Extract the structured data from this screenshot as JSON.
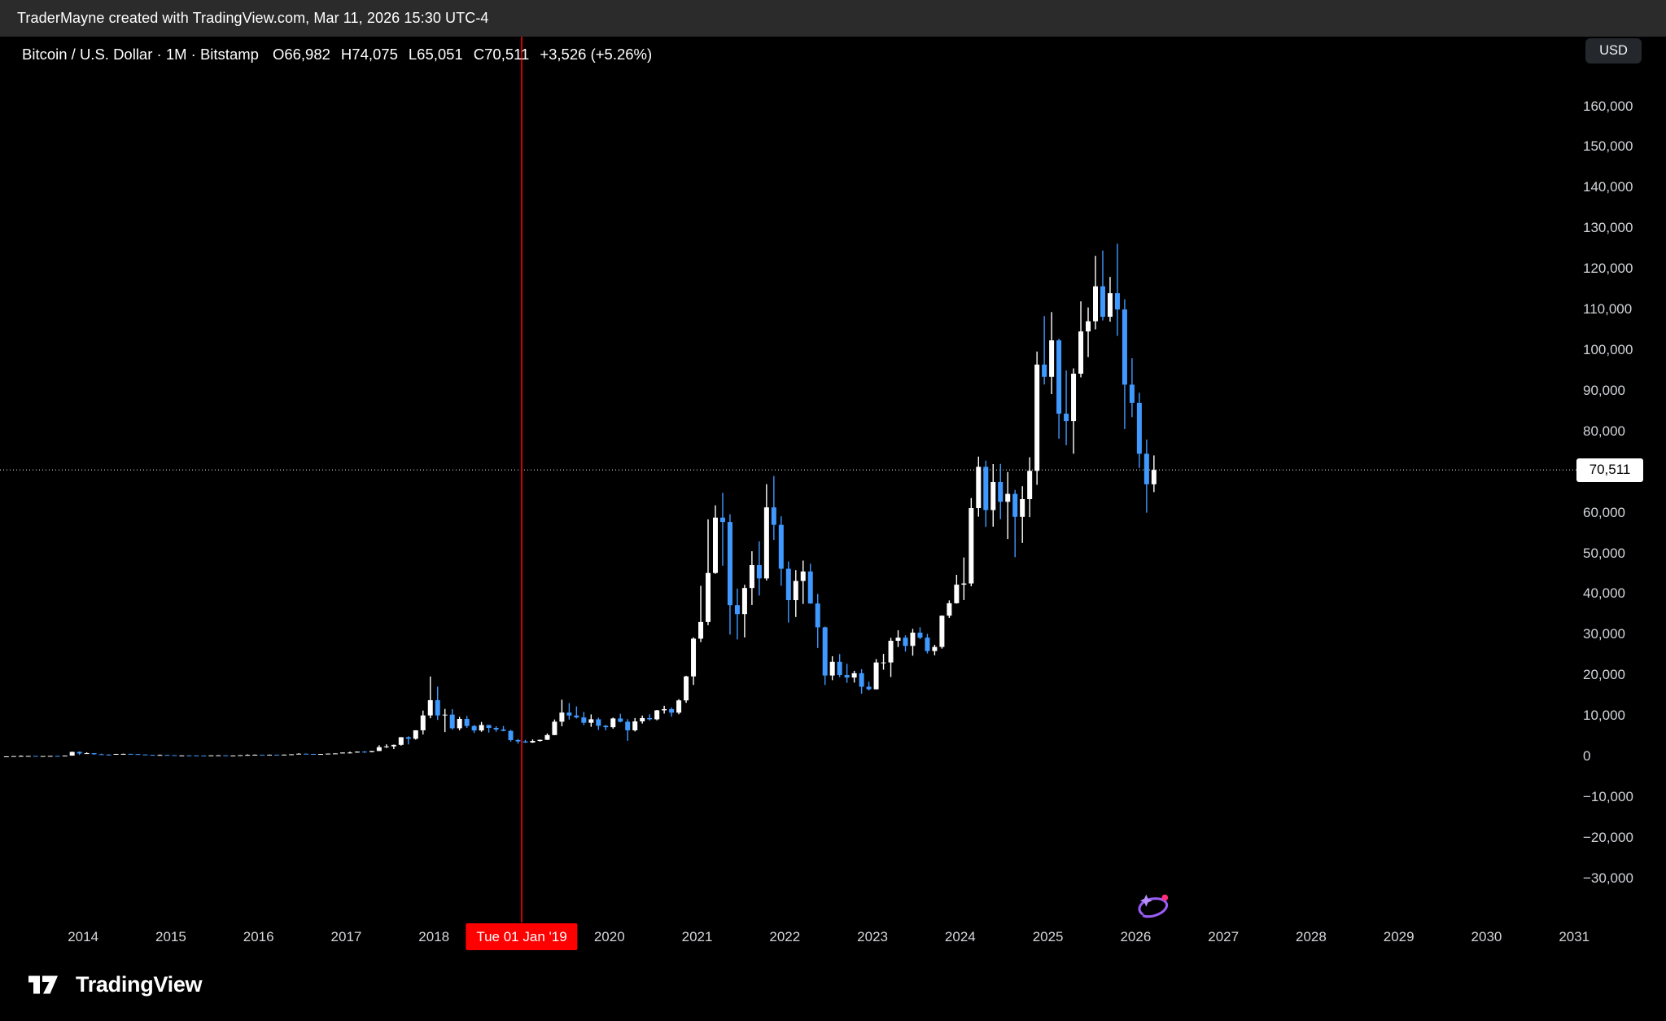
{
  "attribution": {
    "text": "TraderMayne created with TradingView.com, Mar 11, 2026 15:30 UTC-4"
  },
  "header": {
    "title": "Bitcoin / U.S. Dollar · 1M · Bitstamp",
    "open": "O66,982",
    "high": "H74,075",
    "low": "L65,051",
    "close": "C70,511",
    "change": "+3,526 (+5.26%)"
  },
  "price_axis": {
    "currency": "USD",
    "current": {
      "v": 70511,
      "t": "70,511"
    },
    "labels": [
      {
        "v": 160000,
        "t": "160,000"
      },
      {
        "v": 150000,
        "t": "150,000"
      },
      {
        "v": 140000,
        "t": "140,000"
      },
      {
        "v": 130000,
        "t": "130,000"
      },
      {
        "v": 120000,
        "t": "120,000"
      },
      {
        "v": 110000,
        "t": "110,000"
      },
      {
        "v": 100000,
        "t": "100,000"
      },
      {
        "v": 90000,
        "t": "90,000"
      },
      {
        "v": 80000,
        "t": "80,000"
      },
      {
        "v": 60000,
        "t": "60,000"
      },
      {
        "v": 50000,
        "t": "50,000"
      },
      {
        "v": 40000,
        "t": "40,000"
      },
      {
        "v": 30000,
        "t": "30,000"
      },
      {
        "v": 20000,
        "t": "20,000"
      },
      {
        "v": 10000,
        "t": "10,000"
      },
      {
        "v": 0,
        "t": "0"
      },
      {
        "v": -10000,
        "t": "−10,000"
      },
      {
        "v": -20000,
        "t": "−20,000"
      },
      {
        "v": -30000,
        "t": "−30,000"
      }
    ]
  },
  "time_axis": {
    "years": [
      {
        "year": 2014,
        "label": "2014"
      },
      {
        "year": 2015,
        "label": "2015"
      },
      {
        "year": 2016,
        "label": "2016"
      },
      {
        "year": 2017,
        "label": "2017"
      },
      {
        "year": 2018,
        "label": "2018"
      },
      {
        "year": 2020,
        "label": "2020"
      },
      {
        "year": 2021,
        "label": "2021"
      },
      {
        "year": 2022,
        "label": "2022"
      },
      {
        "year": 2023,
        "label": "2023"
      },
      {
        "year": 2024,
        "label": "2024"
      },
      {
        "year": 2025,
        "label": "2025"
      },
      {
        "year": 2026,
        "label": "2026"
      },
      {
        "year": 2027,
        "label": "2027"
      },
      {
        "year": 2028,
        "label": "2028"
      },
      {
        "year": 2029,
        "label": "2029"
      },
      {
        "year": 2030,
        "label": "2030"
      },
      {
        "year": 2031,
        "label": "2031"
      }
    ],
    "marker": {
      "t": "Tue 01 Jan '19",
      "date": "2019-01"
    }
  },
  "footer": {
    "brand": "TradingView"
  },
  "colors": {
    "up": "#ffffff",
    "down": "#4099ff",
    "marker_red": "#fe0000",
    "background": "#000000",
    "axis_text": "#d2d4d9"
  },
  "chart_data": {
    "type": "candlestick",
    "title": "Bitcoin / U.S. Dollar",
    "interval": "1M",
    "exchange": "Bitstamp",
    "ylabel": "USD",
    "ylim": [
      -35000,
      172000
    ],
    "xlim": [
      "2013-02",
      "2031-03"
    ],
    "grid": false,
    "legend": false,
    "current_price": 70511,
    "marker": {
      "date": "2019-01",
      "label": "Tue 01 Jan '19"
    },
    "colors": {
      "up": "#ffffff",
      "down": "#4099ff"
    },
    "candles_format": [
      "month",
      "open",
      "high",
      "low",
      "close"
    ],
    "candles": [
      [
        "2013-02",
        20,
        34,
        17,
        33
      ],
      [
        "2013-03",
        33,
        95,
        33,
        93
      ],
      [
        "2013-04",
        93,
        266,
        50,
        128
      ],
      [
        "2013-05",
        128,
        140,
        79,
        129
      ],
      [
        "2013-06",
        129,
        130,
        88,
        97
      ],
      [
        "2013-07",
        97,
        112,
        65,
        106
      ],
      [
        "2013-08",
        106,
        147,
        92,
        138
      ],
      [
        "2013-09",
        138,
        147,
        109,
        133
      ],
      [
        "2013-10",
        133,
        230,
        109,
        211
      ],
      [
        "2013-11",
        211,
        1163,
        200,
        1130
      ],
      [
        "2013-12",
        1130,
        1240,
        380,
        732
      ],
      [
        "2014-01",
        732,
        1000,
        730,
        806
      ],
      [
        "2014-02",
        806,
        830,
        400,
        550
      ],
      [
        "2014-03",
        550,
        700,
        420,
        454
      ],
      [
        "2014-04",
        454,
        550,
        340,
        446
      ],
      [
        "2014-05",
        446,
        630,
        420,
        627
      ],
      [
        "2014-06",
        627,
        680,
        540,
        640
      ],
      [
        "2014-07",
        640,
        655,
        560,
        582
      ],
      [
        "2014-08",
        582,
        600,
        455,
        478
      ],
      [
        "2014-09",
        478,
        495,
        365,
        387
      ],
      [
        "2014-10",
        387,
        411,
        275,
        338
      ],
      [
        "2014-11",
        338,
        460,
        320,
        378
      ],
      [
        "2014-12",
        378,
        384,
        285,
        320
      ],
      [
        "2015-01",
        320,
        321,
        152,
        217
      ],
      [
        "2015-02",
        217,
        265,
        210,
        254
      ],
      [
        "2015-03",
        254,
        300,
        236,
        244
      ],
      [
        "2015-04",
        244,
        262,
        210,
        236
      ],
      [
        "2015-05",
        236,
        248,
        228,
        230
      ],
      [
        "2015-06",
        230,
        268,
        220,
        263
      ],
      [
        "2015-07",
        263,
        318,
        255,
        284
      ],
      [
        "2015-08",
        284,
        285,
        198,
        230
      ],
      [
        "2015-09",
        230,
        247,
        223,
        236
      ],
      [
        "2015-10",
        236,
        334,
        235,
        314
      ],
      [
        "2015-11",
        314,
        504,
        295,
        377
      ],
      [
        "2015-12",
        377,
        470,
        350,
        430
      ],
      [
        "2016-01",
        430,
        435,
        350,
        368
      ],
      [
        "2016-02",
        368,
        447,
        365,
        437
      ],
      [
        "2016-03",
        437,
        444,
        383,
        416
      ],
      [
        "2016-04",
        416,
        470,
        410,
        448
      ],
      [
        "2016-05",
        448,
        550,
        438,
        531
      ],
      [
        "2016-06",
        531,
        780,
        520,
        673
      ],
      [
        "2016-07",
        673,
        705,
        590,
        624
      ],
      [
        "2016-08",
        624,
        630,
        465,
        575
      ],
      [
        "2016-09",
        575,
        628,
        565,
        610
      ],
      [
        "2016-10",
        610,
        720,
        595,
        700
      ],
      [
        "2016-11",
        700,
        755,
        670,
        745
      ],
      [
        "2016-12",
        745,
        982,
        740,
        963
      ],
      [
        "2017-01",
        963,
        1180,
        750,
        965
      ],
      [
        "2017-02",
        965,
        1220,
        920,
        1190
      ],
      [
        "2017-03",
        1190,
        1330,
        890,
        1080
      ],
      [
        "2017-04",
        1080,
        1347,
        1070,
        1347
      ],
      [
        "2017-05",
        1347,
        2760,
        1340,
        2286
      ],
      [
        "2017-06",
        2286,
        2980,
        2100,
        2480
      ],
      [
        "2017-07",
        2480,
        2920,
        1830,
        2860
      ],
      [
        "2017-08",
        2860,
        4765,
        2650,
        4735
      ],
      [
        "2017-09",
        4735,
        4960,
        2970,
        4360
      ],
      [
        "2017-10",
        4360,
        6450,
        4150,
        6440
      ],
      [
        "2017-11",
        6440,
        11300,
        5400,
        10100
      ],
      [
        "2017-12",
        10100,
        19666,
        9400,
        13850
      ],
      [
        "2018-01",
        13850,
        17200,
        9000,
        10100
      ],
      [
        "2018-02",
        10100,
        11700,
        6000,
        10300
      ],
      [
        "2018-03",
        10300,
        11650,
        6600,
        6940
      ],
      [
        "2018-04",
        6940,
        9750,
        6430,
        9240
      ],
      [
        "2018-05",
        9240,
        9990,
        7030,
        7500
      ],
      [
        "2018-06",
        7500,
        7750,
        5780,
        6400
      ],
      [
        "2018-07",
        6400,
        8500,
        6070,
        7740
      ],
      [
        "2018-08",
        7740,
        7760,
        5880,
        7030
      ],
      [
        "2018-09",
        7030,
        7420,
        6100,
        6630
      ],
      [
        "2018-10",
        6630,
        7500,
        6200,
        6300
      ],
      [
        "2018-11",
        6300,
        6550,
        3650,
        4040
      ],
      [
        "2018-12",
        4040,
        4300,
        3150,
        3700
      ],
      [
        "2019-01",
        3700,
        4080,
        3350,
        3430
      ],
      [
        "2019-02",
        3430,
        4200,
        3350,
        3820
      ],
      [
        "2019-03",
        3820,
        4150,
        3650,
        4100
      ],
      [
        "2019-04",
        4100,
        5650,
        4050,
        5270
      ],
      [
        "2019-05",
        5270,
        9100,
        5250,
        8560
      ],
      [
        "2019-06",
        8560,
        13970,
        7430,
        10800
      ],
      [
        "2019-07",
        10800,
        13130,
        9080,
        10080
      ],
      [
        "2019-08",
        10080,
        12320,
        9350,
        9600
      ],
      [
        "2019-09",
        9600,
        10950,
        7700,
        8300
      ],
      [
        "2019-10",
        8300,
        10350,
        7300,
        9150
      ],
      [
        "2019-11",
        9150,
        9550,
        6520,
        7550
      ],
      [
        "2019-12",
        7550,
        7750,
        6430,
        7200
      ],
      [
        "2020-01",
        7200,
        9570,
        6850,
        9350
      ],
      [
        "2020-02",
        9350,
        10500,
        8400,
        8550
      ],
      [
        "2020-03",
        8550,
        9180,
        3850,
        6440
      ],
      [
        "2020-04",
        6440,
        9460,
        6150,
        8630
      ],
      [
        "2020-05",
        8630,
        10070,
        8100,
        9450
      ],
      [
        "2020-06",
        9450,
        10380,
        8830,
        9140
      ],
      [
        "2020-07",
        9140,
        11440,
        8900,
        11350
      ],
      [
        "2020-08",
        11350,
        12480,
        10550,
        11650
      ],
      [
        "2020-09",
        11650,
        12050,
        9800,
        10780
      ],
      [
        "2020-10",
        10780,
        14100,
        10380,
        13800
      ],
      [
        "2020-11",
        13800,
        19860,
        13200,
        19700
      ],
      [
        "2020-12",
        19700,
        29300,
        17600,
        28990
      ],
      [
        "2021-01",
        28990,
        42000,
        28130,
        33100
      ],
      [
        "2021-02",
        33100,
        58350,
        32300,
        45160
      ],
      [
        "2021-03",
        45160,
        61800,
        44950,
        58780
      ],
      [
        "2021-04",
        58780,
        64900,
        46930,
        57700
      ],
      [
        "2021-05",
        57700,
        59600,
        30000,
        37250
      ],
      [
        "2021-06",
        37250,
        41300,
        28800,
        35040
      ],
      [
        "2021-07",
        35040,
        42250,
        29300,
        41460
      ],
      [
        "2021-08",
        41460,
        50500,
        37300,
        47100
      ],
      [
        "2021-09",
        47100,
        52950,
        39600,
        43820
      ],
      [
        "2021-10",
        43820,
        67000,
        43300,
        61300
      ],
      [
        "2021-11",
        61300,
        69000,
        53300,
        57000
      ],
      [
        "2021-12",
        57000,
        59100,
        42000,
        46200
      ],
      [
        "2022-01",
        46200,
        47990,
        32950,
        38480
      ],
      [
        "2022-02",
        38480,
        45850,
        34320,
        43190
      ],
      [
        "2022-03",
        43190,
        48200,
        37550,
        45520
      ],
      [
        "2022-04",
        45520,
        47450,
        37580,
        37640
      ],
      [
        "2022-05",
        37640,
        40000,
        26700,
        31790
      ],
      [
        "2022-06",
        31790,
        31980,
        17600,
        19925
      ],
      [
        "2022-07",
        19925,
        24670,
        18780,
        23300
      ],
      [
        "2022-08",
        23300,
        25200,
        19520,
        20050
      ],
      [
        "2022-09",
        20050,
        22800,
        18125,
        19425
      ],
      [
        "2022-10",
        19425,
        21085,
        18190,
        20490
      ],
      [
        "2022-11",
        20490,
        21480,
        15460,
        17165
      ],
      [
        "2022-12",
        17165,
        18385,
        16256,
        16530
      ],
      [
        "2023-01",
        16530,
        23960,
        16490,
        23130
      ],
      [
        "2023-02",
        23130,
        25250,
        21350,
        23140
      ],
      [
        "2023-03",
        23140,
        29180,
        19550,
        28470
      ],
      [
        "2023-04",
        28470,
        31050,
        26940,
        29230
      ],
      [
        "2023-05",
        29230,
        29820,
        25800,
        27210
      ],
      [
        "2023-06",
        27210,
        31400,
        24800,
        30470
      ],
      [
        "2023-07",
        30470,
        31800,
        28850,
        29230
      ],
      [
        "2023-08",
        29230,
        30180,
        25350,
        25940
      ],
      [
        "2023-09",
        25940,
        27480,
        24900,
        26960
      ],
      [
        "2023-10",
        26960,
        34700,
        26540,
        34650
      ],
      [
        "2023-11",
        34650,
        38415,
        34100,
        37710
      ],
      [
        "2023-12",
        37710,
        44700,
        37615,
        42280
      ],
      [
        "2024-01",
        42280,
        48970,
        38500,
        42580
      ],
      [
        "2024-02",
        42580,
        63585,
        41880,
        61130
      ],
      [
        "2024-03",
        61130,
        73794,
        59005,
        71280
      ],
      [
        "2024-04",
        71280,
        72797,
        56500,
        60640
      ],
      [
        "2024-05",
        60640,
        71950,
        56555,
        67540
      ],
      [
        "2024-06",
        67540,
        71997,
        58400,
        62670
      ],
      [
        "2024-07",
        62670,
        70000,
        53500,
        64620
      ],
      [
        "2024-08",
        64620,
        65600,
        49050,
        58970
      ],
      [
        "2024-09",
        58970,
        66500,
        52550,
        63330
      ],
      [
        "2024-10",
        63330,
        73620,
        58900,
        70290
      ],
      [
        "2024-11",
        70290,
        99655,
        66835,
        96440
      ],
      [
        "2024-12",
        96440,
        108365,
        91530,
        93430
      ],
      [
        "2025-01",
        93430,
        109356,
        89164,
        102400
      ],
      [
        "2025-02",
        102400,
        102800,
        78200,
        84350
      ],
      [
        "2025-03",
        84350,
        95000,
        76600,
        82550
      ],
      [
        "2025-04",
        82550,
        95500,
        74500,
        94200
      ],
      [
        "2025-05",
        94200,
        112000,
        93300,
        104600
      ],
      [
        "2025-06",
        104600,
        110500,
        98300,
        107100
      ],
      [
        "2025-07",
        107100,
        123200,
        105100,
        115700
      ],
      [
        "2025-08",
        115700,
        124500,
        107300,
        108200
      ],
      [
        "2025-09",
        108200,
        118000,
        107000,
        114000
      ],
      [
        "2025-10",
        114000,
        126200,
        103500,
        110000
      ],
      [
        "2025-11",
        110000,
        112500,
        80600,
        91500
      ],
      [
        "2025-12",
        91500,
        98000,
        83500,
        87000
      ],
      [
        "2026-01",
        87000,
        89500,
        71000,
        74500
      ],
      [
        "2026-02",
        74500,
        78000,
        60000,
        66985
      ],
      [
        "2026-03",
        66982,
        74075,
        65051,
        70511
      ]
    ]
  }
}
